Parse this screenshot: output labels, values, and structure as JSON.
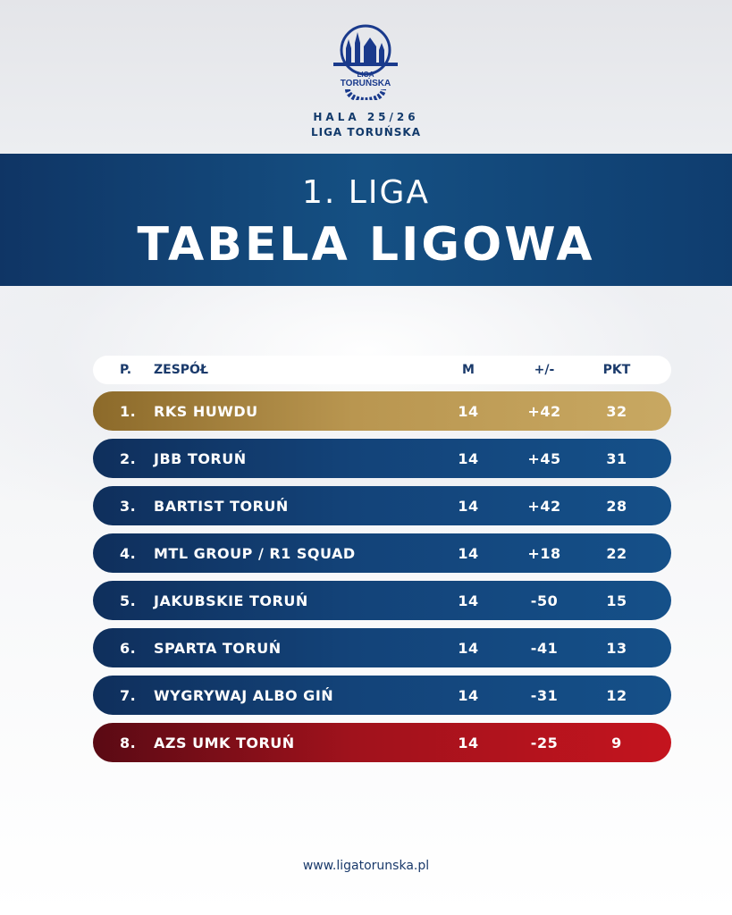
{
  "header": {
    "logo_text": "LIGA TORUŃSKA",
    "season": "HALA 25/26",
    "organizer": "LIGA TORUŃSKA"
  },
  "banner": {
    "league": "1. LIGA",
    "title": "TABELA LIGOWA"
  },
  "table": {
    "columns": {
      "pos": "P.",
      "team": "ZESPÓŁ",
      "m": "M",
      "diff": "+/-",
      "pts": "PKT"
    },
    "rows": [
      {
        "pos": "1.",
        "team": "RKS HUWDU",
        "m": "14",
        "diff": "+42",
        "pts": "32",
        "style": "gold"
      },
      {
        "pos": "2.",
        "team": "JBB TORUŃ",
        "m": "14",
        "diff": "+45",
        "pts": "31",
        "style": "blue"
      },
      {
        "pos": "3.",
        "team": "BARTIST TORUŃ",
        "m": "14",
        "diff": "+42",
        "pts": "28",
        "style": "blue"
      },
      {
        "pos": "4.",
        "team": "MTL GROUP / R1 SQUAD",
        "m": "14",
        "diff": "+18",
        "pts": "22",
        "style": "blue"
      },
      {
        "pos": "5.",
        "team": "JAKUBSKIE TORUŃ",
        "m": "14",
        "diff": "-50",
        "pts": "15",
        "style": "blue"
      },
      {
        "pos": "6.",
        "team": "SPARTA TORUŃ",
        "m": "14",
        "diff": "-41",
        "pts": "13",
        "style": "blue"
      },
      {
        "pos": "7.",
        "team": "WYGRYWAJ ALBO GIŃ",
        "m": "14",
        "diff": "-31",
        "pts": "12",
        "style": "blue"
      },
      {
        "pos": "8.",
        "team": "AZS UMK TORUŃ",
        "m": "14",
        "diff": "-25",
        "pts": "9",
        "style": "red"
      }
    ]
  },
  "footer": {
    "url": "www.ligatorunska.pl"
  },
  "colors": {
    "navy": "#123a6b",
    "gold": "#b99650",
    "red": "#a0121c"
  }
}
